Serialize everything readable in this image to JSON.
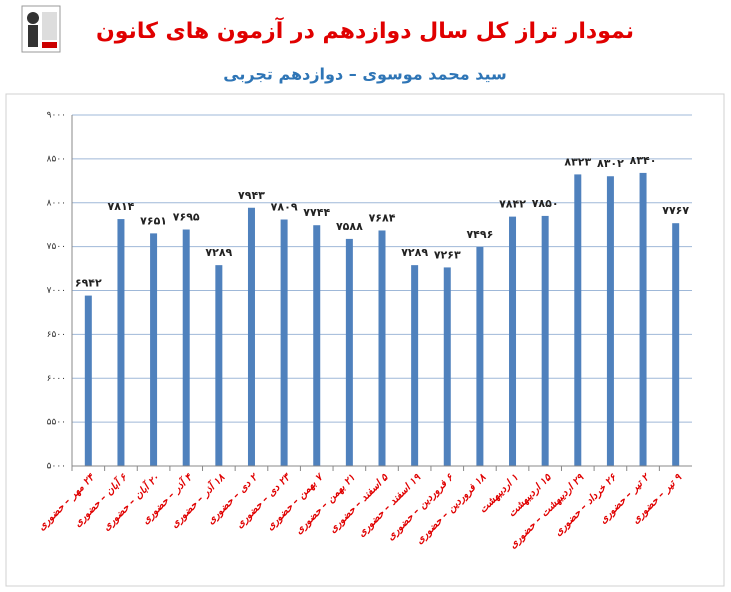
{
  "chart_data": {
    "type": "bar",
    "title": "نمودار تراز کل سال دوازدهم در آزمون های کانون",
    "subtitle": "سید محمد موسوی – دوازدهم تجربی",
    "categories": [
      "۲۴ مهر – حضوری",
      "۶ آبان – حضوری",
      "۲۰ آبان – حضوری",
      "۴ آذر – حضوری",
      "۱۸ آذر – حضوری",
      "۲ دی – حضوری",
      "۲۳ دی – حضوری",
      "۷ بهمن – حضوری",
      "۲۱ بهمن – حضوری",
      "۵ اسفند – حضوری",
      "۱۹ اسفند – حضوری",
      "۶ فروردین – حضوری",
      "۱۸ فروردین – حضوری",
      "۱ اردیبهشت",
      "۱۵ اردیبهشت",
      "۲۹ اردیبهشت – حضوری",
      "۲۶ خرداد – حضوری",
      "۲ تیر – حضوری",
      "۹ تیر – حضوری"
    ],
    "values": [
      6942,
      7814,
      7651,
      7695,
      7289,
      7943,
      7809,
      7744,
      7588,
      7684,
      7289,
      7263,
      7496,
      7842,
      7850,
      8323,
      8302,
      8340,
      7767
    ],
    "value_labels": [
      "۶۹۴۲",
      "۷۸۱۴",
      "۷۶۵۱",
      "۷۶۹۵",
      "۷۲۸۹",
      "۷۹۴۳",
      "۷۸۰۹",
      "۷۷۴۴",
      "۷۵۸۸",
      "۷۶۸۴",
      "۷۲۸۹",
      "۷۲۶۳",
      "۷۴۹۶",
      "۷۸۴۲",
      "۷۸۵۰",
      "۸۳۲۳",
      "۸۳۰۲",
      "۸۳۴۰",
      "۷۷۶۷"
    ],
    "color": "#4f81bd",
    "ylim": [
      5000,
      9000
    ],
    "yticks": [
      {
        "value": 5000,
        "label": "۵۰۰۰"
      },
      {
        "value": 5500,
        "label": "۵۵۰۰"
      },
      {
        "value": 6000,
        "label": "۶۰۰۰"
      },
      {
        "value": 6500,
        "label": "۶۵۰۰"
      },
      {
        "value": 7000,
        "label": "۷۰۰۰"
      },
      {
        "value": 7500,
        "label": "۷۵۰۰"
      },
      {
        "value": 8000,
        "label": "۸۰۰۰"
      },
      {
        "value": 8500,
        "label": "۸۵۰۰"
      },
      {
        "value": 9000,
        "label": "۹۰۰۰"
      }
    ],
    "grid": true
  }
}
